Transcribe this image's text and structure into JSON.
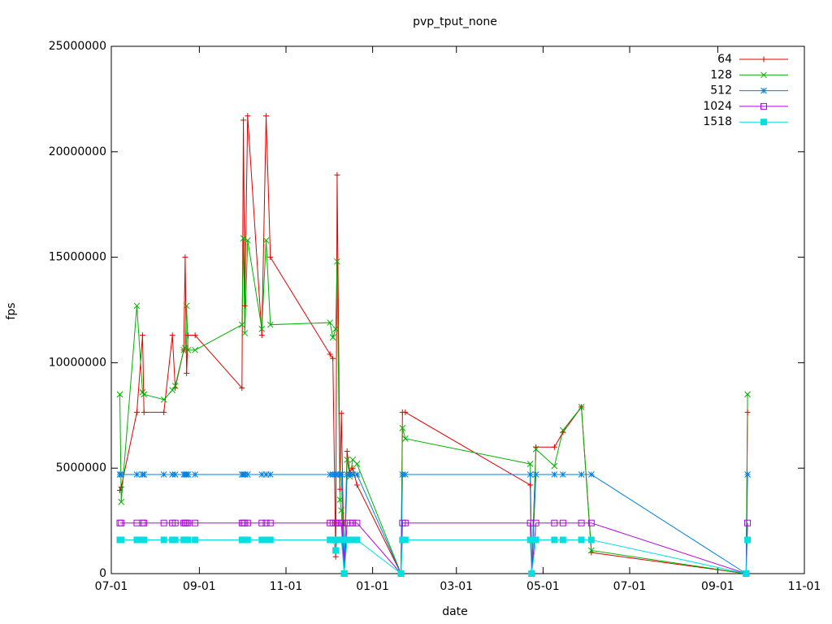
{
  "chart_data": {
    "type": "line",
    "title": "pvp_tput_none",
    "x_label": "date",
    "y_label": "fps",
    "x": [
      6,
      7,
      18,
      22,
      23,
      37,
      43,
      45,
      51,
      52,
      53,
      54,
      59,
      92,
      93,
      94,
      96,
      106,
      109,
      112,
      154,
      156,
      158,
      159,
      161,
      162,
      164,
      166,
      168,
      170,
      173,
      204,
      205,
      207,
      295,
      296,
      299,
      312,
      318,
      331,
      338,
      447,
      448
    ],
    "series": [
      {
        "name": "64",
        "color": "#e00000",
        "marker": "plus",
        "values": [
          3950000,
          4100000,
          7650000,
          11300000,
          7650000,
          7650000,
          11300000,
          8800000,
          10600000,
          15000000,
          9500000,
          11300000,
          11300000,
          8800000,
          21500000,
          12700000,
          21700000,
          11300000,
          21700000,
          15000000,
          10400000,
          10200000,
          800000,
          18900000,
          4000000,
          7600000,
          0,
          5800000,
          4800000,
          5000000,
          4200000,
          0,
          7650000,
          7650000,
          4200000,
          0,
          6000000,
          6000000,
          6700000,
          7900000,
          1000000,
          0,
          7650000
        ]
      },
      {
        "name": "128",
        "color": "#00b000",
        "marker": "cross",
        "values": [
          8500000,
          3400000,
          12700000,
          8600000,
          8500000,
          8250000,
          8700000,
          8900000,
          10600000,
          10700000,
          12700000,
          10600000,
          10600000,
          11800000,
          15900000,
          11400000,
          15800000,
          11600000,
          15800000,
          11800000,
          11900000,
          11200000,
          11600000,
          14800000,
          3500000,
          3000000,
          0,
          5400000,
          4600000,
          5400000,
          5200000,
          0,
          6900000,
          6400000,
          5200000,
          0,
          5900000,
          5100000,
          6800000,
          7900000,
          1100000,
          0,
          8500000
        ]
      },
      {
        "name": "512",
        "color": "#0080e0",
        "marker": "star",
        "values": [
          4700000,
          4700000,
          4700000,
          4700000,
          4700000,
          4700000,
          4700000,
          4700000,
          4700000,
          4700000,
          4700000,
          4700000,
          4700000,
          4700000,
          4700000,
          4700000,
          4700000,
          4700000,
          4700000,
          4700000,
          4700000,
          4700000,
          4700000,
          4700000,
          4700000,
          4700000,
          0,
          4700000,
          4700000,
          4700000,
          4700000,
          0,
          4700000,
          4700000,
          4700000,
          0,
          4700000,
          4700000,
          4700000,
          4700000,
          4700000,
          0,
          4700000
        ]
      },
      {
        "name": "1024",
        "color": "#b000e0",
        "marker": "square-open",
        "values": [
          2400000,
          2400000,
          2400000,
          2400000,
          2400000,
          2400000,
          2400000,
          2400000,
          2400000,
          2400000,
          2400000,
          2400000,
          2400000,
          2400000,
          2400000,
          2400000,
          2400000,
          2400000,
          2400000,
          2400000,
          2400000,
          2400000,
          2400000,
          2400000,
          2400000,
          2400000,
          0,
          2400000,
          2400000,
          2400000,
          2400000,
          0,
          2400000,
          2400000,
          2400000,
          0,
          2400000,
          2400000,
          2400000,
          2400000,
          2400000,
          0,
          2400000
        ]
      },
      {
        "name": "1518",
        "color": "#00e0e0",
        "marker": "square-filled",
        "values": [
          1600000,
          1600000,
          1600000,
          1600000,
          1600000,
          1600000,
          1600000,
          1600000,
          1600000,
          1600000,
          1600000,
          1600000,
          1600000,
          1600000,
          1600000,
          1600000,
          1600000,
          1600000,
          1600000,
          1600000,
          1600000,
          1600000,
          1100000,
          1600000,
          1600000,
          1600000,
          0,
          1600000,
          1600000,
          1600000,
          1600000,
          0,
          1600000,
          1600000,
          1600000,
          0,
          1600000,
          1600000,
          1600000,
          1600000,
          1600000,
          0,
          1600000
        ]
      }
    ],
    "xlim": [
      0,
      488
    ],
    "xticks": [
      {
        "value": 0,
        "label": "07-01"
      },
      {
        "value": 62,
        "label": "09-01"
      },
      {
        "value": 123,
        "label": "11-01"
      },
      {
        "value": 184,
        "label": "01-01"
      },
      {
        "value": 243,
        "label": "03-01"
      },
      {
        "value": 304,
        "label": "05-01"
      },
      {
        "value": 365,
        "label": "07-01"
      },
      {
        "value": 427,
        "label": "09-01"
      },
      {
        "value": 488,
        "label": "11-01"
      }
    ],
    "ylim": [
      0,
      25000000
    ],
    "yticks": [
      0,
      5000000,
      10000000,
      15000000,
      20000000,
      25000000
    ],
    "legend": "top right",
    "grid": false
  }
}
